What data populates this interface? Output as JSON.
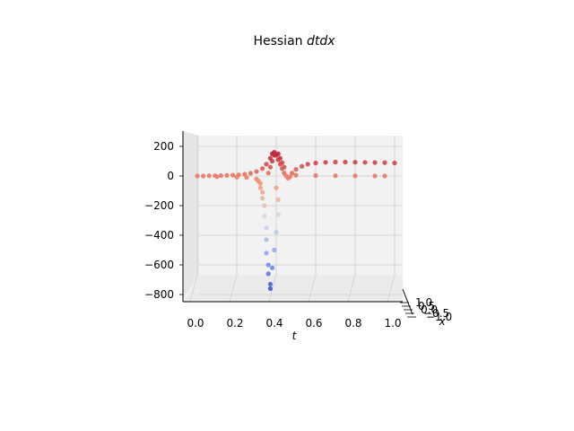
{
  "chart_data": {
    "type": "scatter",
    "projection": "3d",
    "title_prefix": "Hessian ",
    "title_math": "dtdx",
    "xlabel": "t",
    "depthlabel": "x",
    "zlabel": "",
    "t_ticks": [
      "0.0",
      "0.2",
      "0.4",
      "0.6",
      "0.8",
      "1.0"
    ],
    "z_ticks": [
      "200",
      "0",
      "−200",
      "−400",
      "−600",
      "−800"
    ],
    "x_ticks": [
      "1.0",
      "0.5",
      "0.0",
      "−0.5",
      "−1.0"
    ],
    "z_tick_values": [
      200,
      0,
      -200,
      -400,
      -600,
      -800
    ],
    "t_range": [
      0,
      1
    ],
    "z_range": [
      -850,
      250
    ],
    "colormap": "coolwarm",
    "grid": true,
    "series": [
      {
        "points": [
          [
            0.0,
            0
          ],
          [
            0.03,
            0
          ],
          [
            0.06,
            2
          ],
          [
            0.09,
            2
          ],
          [
            0.12,
            3
          ],
          [
            0.15,
            4
          ],
          [
            0.18,
            6
          ],
          [
            0.21,
            8
          ],
          [
            0.24,
            12
          ],
          [
            0.27,
            18
          ],
          [
            0.3,
            30
          ],
          [
            0.33,
            50
          ],
          [
            0.35,
            80
          ],
          [
            0.37,
            120
          ],
          [
            0.38,
            150
          ],
          [
            0.39,
            160
          ],
          [
            0.4,
            140
          ],
          [
            0.41,
            110
          ],
          [
            0.42,
            80
          ],
          [
            0.43,
            50
          ],
          [
            0.44,
            20
          ],
          [
            0.45,
            0
          ],
          [
            0.46,
            -15
          ],
          [
            0.47,
            -5
          ],
          [
            0.48,
            20
          ],
          [
            0.5,
            45
          ],
          [
            0.53,
            65
          ],
          [
            0.56,
            80
          ],
          [
            0.6,
            88
          ],
          [
            0.65,
            92
          ],
          [
            0.7,
            94
          ],
          [
            0.75,
            94
          ],
          [
            0.8,
            93
          ],
          [
            0.85,
            92
          ],
          [
            0.9,
            91
          ],
          [
            0.95,
            90
          ],
          [
            1.0,
            88
          ],
          [
            0.3,
            -20
          ],
          [
            0.31,
            -35
          ],
          [
            0.32,
            -50
          ],
          [
            0.32,
            -80
          ],
          [
            0.33,
            -110
          ],
          [
            0.33,
            -150
          ],
          [
            0.34,
            -200
          ],
          [
            0.34,
            -270
          ],
          [
            0.35,
            -350
          ],
          [
            0.35,
            -430
          ],
          [
            0.35,
            -520
          ],
          [
            0.36,
            -600
          ],
          [
            0.36,
            -660
          ],
          [
            0.37,
            -730
          ],
          [
            0.37,
            -760
          ],
          [
            0.4,
            -80
          ],
          [
            0.41,
            -160
          ],
          [
            0.41,
            -260
          ],
          [
            0.4,
            -380
          ],
          [
            0.39,
            -500
          ],
          [
            0.38,
            -620
          ],
          [
            0.36,
            20
          ],
          [
            0.37,
            60
          ],
          [
            0.38,
            100
          ],
          [
            0.39,
            140
          ],
          [
            0.41,
            150
          ],
          [
            0.42,
            120
          ],
          [
            0.43,
            90
          ],
          [
            0.44,
            60
          ],
          [
            0.1,
            -5
          ],
          [
            0.2,
            -8
          ],
          [
            0.25,
            -10
          ],
          [
            0.5,
            5
          ],
          [
            0.6,
            3
          ],
          [
            0.7,
            2
          ],
          [
            0.8,
            1
          ],
          [
            0.9,
            0
          ],
          [
            0.95,
            0
          ]
        ]
      }
    ]
  }
}
